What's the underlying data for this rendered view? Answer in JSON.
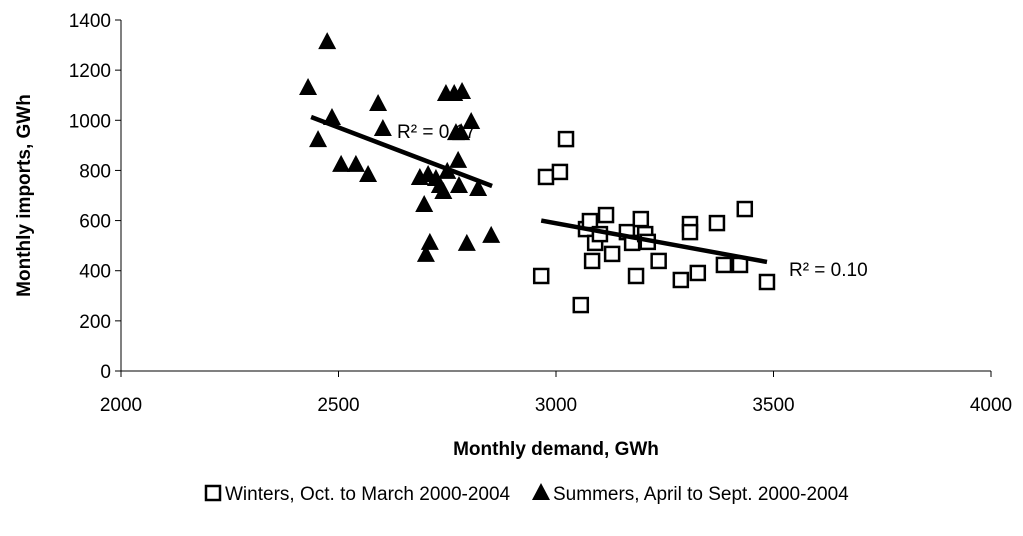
{
  "chart_data": {
    "type": "scatter",
    "x_label": "Monthly demand, GWh",
    "y_label": "Monthly imports, GWh",
    "xlim": [
      2000,
      4000
    ],
    "xticks": [
      2000,
      2500,
      3000,
      3500,
      4000
    ],
    "ylim": [
      0,
      1400
    ],
    "yticks": [
      0,
      200,
      400,
      600,
      800,
      1000,
      1200,
      1400
    ],
    "grid": false,
    "legend": "bottom",
    "series": [
      {
        "name": "Winters, Oct. to March 2000-2004",
        "marker": "square",
        "color": "#000000",
        "x": [
          2966,
          2977,
          3009,
          3023,
          3057,
          3069,
          3078,
          3083,
          3090,
          3101,
          3115,
          3129,
          3163,
          3175,
          3184,
          3195,
          3205,
          3211,
          3236,
          3287,
          3308,
          3308,
          3326,
          3370,
          3386,
          3423,
          3434,
          3485
        ],
        "y": [
          379,
          774,
          794,
          925,
          263,
          566,
          598,
          439,
          511,
          546,
          622,
          467,
          554,
          511,
          379,
          606,
          546,
          515,
          439,
          363,
          586,
          554,
          391,
          590,
          423,
          423,
          646,
          355
        ],
        "trend": {
          "x": [
            2966,
            3485
          ],
          "y": [
            600,
            435
          ],
          "label": "R² = 0.10"
        }
      },
      {
        "name": "Summers, April to Sept. 2000-2004",
        "marker": "triangle",
        "color": "#000000",
        "x": [
          2430,
          2474,
          2453,
          2485,
          2506,
          2540,
          2568,
          2591,
          2602,
          2687,
          2697,
          2706,
          2710,
          2701,
          2724,
          2733,
          2741,
          2750,
          2747,
          2766,
          2784,
          2770,
          2782,
          2775,
          2777,
          2795,
          2805,
          2821,
          2851
        ],
        "y": [
          1129,
          1312,
          921,
          1009,
          822,
          822,
          782,
          1065,
          965,
          770,
          662,
          782,
          511,
          463,
          766,
          738,
          714,
          794,
          1105,
          1105,
          1113,
          949,
          949,
          838,
          738,
          507,
          993,
          726,
          539
        ],
        "trend": {
          "x": [
            2437,
            2853
          ],
          "y": [
            1013,
            738
          ],
          "label": "R² = 0.17"
        }
      }
    ]
  }
}
